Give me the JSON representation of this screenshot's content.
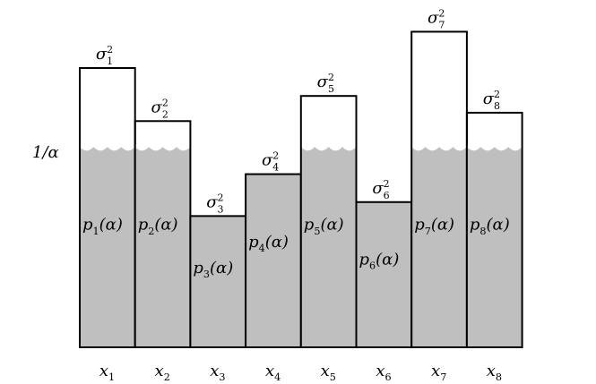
{
  "level_label": "1/α",
  "level": 0.72,
  "columns": [
    {
      "x_label": "x",
      "x_sub": "1",
      "sigma_sub": "1",
      "p_label": "p",
      "p_sub": "1",
      "p_arg": "(α)",
      "height": 1.0,
      "fill": 1.0
    },
    {
      "x_label": "x",
      "x_sub": "2",
      "sigma_sub": "2",
      "p_label": "p",
      "p_sub": "2",
      "p_arg": "(α)",
      "height": 0.81,
      "fill": 1.0
    },
    {
      "x_label": "x",
      "x_sub": "3",
      "sigma_sub": "3",
      "p_label": "p",
      "p_sub": "3",
      "p_arg": "(α)",
      "height": 0.47,
      "fill": 0.47
    },
    {
      "x_label": "x",
      "x_sub": "4",
      "sigma_sub": "4",
      "p_label": "p",
      "p_sub": "4",
      "p_arg": "(α)",
      "height": 0.62,
      "fill": 0.62
    },
    {
      "x_label": "x",
      "x_sub": "5",
      "sigma_sub": "5",
      "p_label": "p",
      "p_sub": "5",
      "p_arg": "(α)",
      "height": 0.9,
      "fill": 1.0
    },
    {
      "x_label": "x",
      "x_sub": "6",
      "sigma_sub": "6",
      "p_label": "p",
      "p_sub": "6",
      "p_arg": "(α)",
      "height": 0.52,
      "fill": 0.52
    },
    {
      "x_label": "x",
      "x_sub": "7",
      "sigma_sub": "7",
      "p_label": "p",
      "p_sub": "7",
      "p_arg": "(α)",
      "height": 1.13,
      "fill": 1.0
    },
    {
      "x_label": "x",
      "x_sub": "8",
      "sigma_sub": "8",
      "p_label": "p",
      "p_sub": "8",
      "p_arg": "(α)",
      "height": 0.84,
      "fill": 1.0
    }
  ],
  "sigma_symbol": "σ",
  "sigma_power": "2",
  "colors": {
    "water": "#bfbfbf",
    "outline": "#000000",
    "background": "#ffffff"
  }
}
